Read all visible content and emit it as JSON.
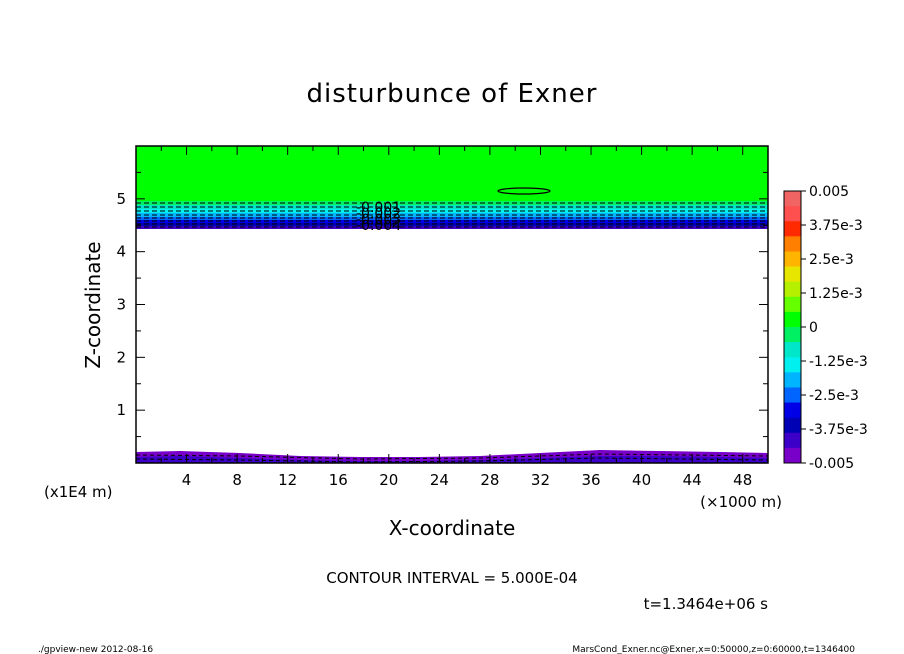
{
  "chart_data": {
    "type": "heatmap",
    "title": "disturbunce of Exner",
    "xlabel": "X-coordinate",
    "ylabel": "Z-coordinate",
    "x_unit": "(×1000 m)",
    "y_unit": "(x1E4 m)",
    "xlim": [
      0,
      50
    ],
    "ylim": [
      0,
      6
    ],
    "x_ticks": [
      "4",
      "8",
      "12",
      "16",
      "20",
      "24",
      "28",
      "32",
      "36",
      "40",
      "44",
      "48"
    ],
    "y_ticks": [
      "1",
      "2",
      "3",
      "4",
      "5"
    ],
    "contour_labels": [
      "-0.001",
      "-0.002",
      "-0.003",
      "-0.004"
    ],
    "colorbar": {
      "min": -0.005,
      "max": 0.005,
      "tick_labels": [
        "0.005",
        "3.75e-3",
        "2.5e-3",
        "1.25e-3",
        "0",
        "-1.25e-3",
        "-2.5e-3",
        "-3.75e-3",
        "-0.005"
      ],
      "colors": [
        "#f06464",
        "#ff5050",
        "#ff2a00",
        "#ff7f00",
        "#ffb400",
        "#e6e600",
        "#b4f000",
        "#66ff00",
        "#00ff00",
        "#00f064",
        "#00e6c8",
        "#00f0f0",
        "#00b4ff",
        "#0064ff",
        "#0000e6",
        "#0000b4",
        "#3c00c8",
        "#7800c8"
      ]
    },
    "contour_interval_text": "CONTOUR INTERVAL = 5.000E-04",
    "time_text": "t=1.3464e+06 s"
  },
  "footer": {
    "left": "./gpview-new   2012-08-16",
    "right": "MarsCond_Exner.nc@Exner,x=0:50000,z=0:60000,t=1346400"
  }
}
